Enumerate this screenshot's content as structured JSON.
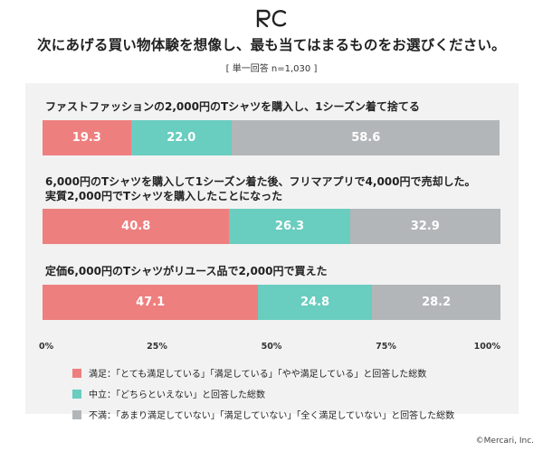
{
  "header": {
    "logo_icon": "mercari-rc-logo-icon",
    "title": "次にあげる買い物体験を想像し、最も当てはまるものをお選びください。",
    "subtitle": "[ 単一回答 n=1,030 ]"
  },
  "colors": {
    "satisfied": "#ee7f7f",
    "neutral": "#69cdbf",
    "dissatisfied": "#b3b6b8"
  },
  "chart_data": {
    "type": "bar",
    "stacked": true,
    "orientation": "horizontal",
    "xlim": [
      0,
      100
    ],
    "x_ticks": [
      "0%",
      "25%",
      "50%",
      "75%",
      "100%"
    ],
    "categories": [
      "ファストファッションの2,000円のTシャツを購入し、1シーズン着て捨てる",
      "6,000円のTシャツを購入して1シーズン着た後、フリマアプリで4,000円で売却した。\n実質2,000円でTシャツを購入したことになった",
      "定価6,000円のTシャツがリユース品で2,000円で買えた"
    ],
    "series": [
      {
        "name": "満足：「とても満足している」「満足している」「やや満足している」と回答した総数",
        "values": [
          19.3,
          40.8,
          47.1
        ],
        "labels": [
          "19.3",
          "40.8",
          "47.1"
        ]
      },
      {
        "name": "中立：「どちらといえない」と回答した総数",
        "values": [
          22.0,
          26.3,
          24.8
        ],
        "labels": [
          "22.0",
          "26.3",
          "24.8"
        ]
      },
      {
        "name": "不満：「あまり満足していない」「満足していない」「全く満足していない」と回答した総数",
        "values": [
          58.6,
          32.9,
          28.2
        ],
        "labels": [
          "58.6",
          "32.9",
          "28.2"
        ]
      }
    ],
    "legend_position": "bottom"
  },
  "footer": {
    "credit": "©Mercari, Inc."
  }
}
